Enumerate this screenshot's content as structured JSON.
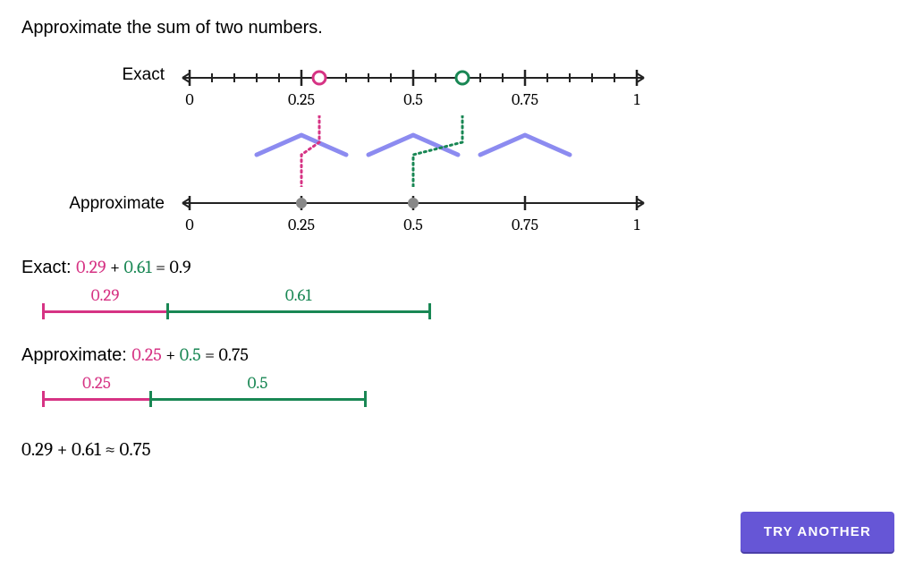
{
  "title": "Approximate the sum of two numbers.",
  "colors": {
    "pink": "#d63384",
    "green": "#198754",
    "axis": "#222222",
    "purple": "#8c8bf0",
    "dotGrey": "#888888",
    "button": "#6656d6"
  },
  "exactLine": {
    "label": "Exact",
    "min": 0,
    "max": 1,
    "majorTickStep": 0.25,
    "minorTickStep": 0.05,
    "tickLabels": [
      "0",
      "0.25",
      "0.5",
      "0.75",
      "1"
    ],
    "inputA": {
      "value": 0.29,
      "color": "#d63384"
    },
    "inputB": {
      "value": 0.61,
      "color": "#198754"
    },
    "lengthPx": 500
  },
  "approxLine": {
    "label": "Approximate",
    "min": 0,
    "max": 1,
    "majorTickStep": 0.25,
    "tickLabels": [
      "0",
      "0.25",
      "0.5",
      "0.75",
      "1"
    ],
    "dotA": {
      "value": 0.25,
      "color": "#888888"
    },
    "dotB": {
      "value": 0.5,
      "color": "#888888"
    },
    "lengthPx": 500
  },
  "arrows": {
    "peaks": [
      0.25,
      0.5,
      0.75
    ],
    "baseWidth": 0.1,
    "peakHeight": 22,
    "color": "#8c8bf0",
    "connectA": {
      "from": 0.29,
      "to": 0.25,
      "color": "#d63384"
    },
    "connectB": {
      "from": 0.61,
      "to": 0.5,
      "color": "#198754"
    }
  },
  "exactExpr": {
    "prefix": "Exact: ",
    "a": "0.29",
    "op": " + ",
    "b": "0.61",
    "eq": " = ",
    "result": "0.9"
  },
  "exactBars": {
    "scalePxPerUnit": 480,
    "a": {
      "label": "0.29",
      "value": 0.29,
      "color": "#d63384"
    },
    "b": {
      "label": "0.61",
      "value": 0.61,
      "color": "#198754"
    }
  },
  "approxExpr": {
    "prefix": "Approximate: ",
    "a": "0.25",
    "op": " + ",
    "b": "0.5",
    "eq": " = ",
    "result": "0.75"
  },
  "approxBars": {
    "scalePxPerUnit": 480,
    "a": {
      "label": "0.25",
      "value": 0.25,
      "color": "#d63384"
    },
    "b": {
      "label": "0.5",
      "value": 0.5,
      "color": "#198754"
    }
  },
  "finalExpr": {
    "lhsA": "0.29",
    "op": " + ",
    "lhsB": "0.61",
    "approx": " ≈ ",
    "rhs": "0.75"
  },
  "button": {
    "label": "TRY ANOTHER"
  }
}
